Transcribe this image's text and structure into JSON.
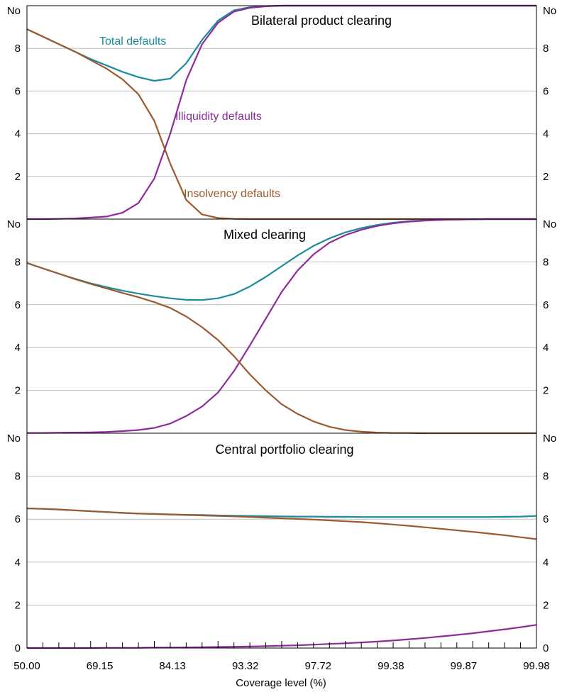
{
  "chart_data": {
    "type": "line",
    "xlabel": "Coverage level (%)",
    "x_tick_labels": [
      "50.00",
      "69.15",
      "84.13",
      "93.32",
      "97.72",
      "99.38",
      "99.87",
      "99.98"
    ],
    "y_unit_label": "No",
    "y_tick_labels": [
      "0",
      "2",
      "4",
      "6",
      "8"
    ],
    "ylim": [
      0,
      10
    ],
    "grid": "horizontal",
    "colors": {
      "total": "#1a8c9c",
      "illiquidity": "#8e2c9c",
      "insolvency": "#9c5a30",
      "grid": "#bfbfbf"
    },
    "x_points": 33,
    "panels": [
      {
        "title": "Bilateral product clearing",
        "labels": [
          {
            "series": "total",
            "text": "Total defaults"
          },
          {
            "series": "illiquidity",
            "text": "Illiquidity defaults"
          },
          {
            "series": "insolvency",
            "text": "Insolvency defaults"
          }
        ],
        "series": [
          {
            "key": "total",
            "values": [
              8.9,
              8.55,
              8.2,
              7.85,
              7.5,
              7.2,
              6.9,
              6.65,
              6.48,
              6.58,
              7.3,
              8.4,
              9.3,
              9.78,
              9.93,
              9.98,
              10,
              10,
              10,
              10,
              10,
              10,
              10,
              10,
              10,
              10,
              10,
              10,
              10,
              10,
              10,
              10,
              10
            ]
          },
          {
            "key": "illiquidity",
            "values": [
              0,
              0,
              0.01,
              0.03,
              0.07,
              0.12,
              0.3,
              0.75,
              1.9,
              4.0,
              6.5,
              8.2,
              9.2,
              9.72,
              9.9,
              9.97,
              10,
              10,
              10,
              10,
              10,
              10,
              10,
              10,
              10,
              10,
              10,
              10,
              10,
              10,
              10,
              10,
              10
            ]
          },
          {
            "key": "insolvency",
            "values": [
              8.9,
              8.55,
              8.2,
              7.85,
              7.45,
              7.05,
              6.55,
              5.85,
              4.6,
              2.6,
              0.9,
              0.22,
              0.05,
              0.01,
              0,
              0,
              0,
              0,
              0,
              0,
              0,
              0,
              0,
              0,
              0,
              0,
              0,
              0,
              0,
              0,
              0,
              0,
              0
            ]
          }
        ]
      },
      {
        "title": "Mixed clearing",
        "labels": [],
        "series": [
          {
            "key": "total",
            "values": [
              7.95,
              7.7,
              7.45,
              7.22,
              7.0,
              6.82,
              6.66,
              6.52,
              6.4,
              6.3,
              6.23,
              6.22,
              6.3,
              6.5,
              6.85,
              7.3,
              7.8,
              8.3,
              8.75,
              9.1,
              9.38,
              9.58,
              9.73,
              9.83,
              9.9,
              9.94,
              9.96,
              9.98,
              9.99,
              10,
              10,
              10,
              10
            ]
          },
          {
            "key": "illiquidity",
            "values": [
              0.01,
              0.01,
              0.02,
              0.03,
              0.04,
              0.06,
              0.1,
              0.15,
              0.25,
              0.45,
              0.8,
              1.25,
              1.9,
              2.9,
              4.1,
              5.35,
              6.6,
              7.6,
              8.35,
              8.9,
              9.25,
              9.5,
              9.68,
              9.8,
              9.88,
              9.93,
              9.96,
              9.98,
              9.99,
              10,
              10,
              10,
              10
            ]
          },
          {
            "key": "insolvency",
            "values": [
              7.95,
              7.7,
              7.45,
              7.2,
              6.97,
              6.76,
              6.55,
              6.35,
              6.12,
              5.85,
              5.45,
              4.95,
              4.35,
              3.6,
              2.75,
              2.0,
              1.35,
              0.9,
              0.55,
              0.3,
              0.15,
              0.07,
              0.03,
              0.01,
              0.01,
              0,
              0,
              0,
              0,
              0,
              0,
              0,
              0
            ]
          }
        ]
      },
      {
        "title": "Central portfolio clearing",
        "labels": [],
        "series": [
          {
            "key": "total",
            "values": [
              6.5,
              6.48,
              6.45,
              6.41,
              6.37,
              6.33,
              6.29,
              6.26,
              6.24,
              6.22,
              6.2,
              6.19,
              6.17,
              6.16,
              6.15,
              6.14,
              6.13,
              6.12,
              6.12,
              6.11,
              6.11,
              6.1,
              6.1,
              6.1,
              6.1,
              6.1,
              6.1,
              6.1,
              6.1,
              6.1,
              6.11,
              6.12,
              6.15
            ]
          },
          {
            "key": "insolvency",
            "values": [
              6.5,
              6.48,
              6.45,
              6.41,
              6.37,
              6.33,
              6.29,
              6.26,
              6.24,
              6.21,
              6.19,
              6.17,
              6.15,
              6.13,
              6.1,
              6.07,
              6.04,
              6.01,
              5.98,
              5.94,
              5.9,
              5.86,
              5.81,
              5.75,
              5.69,
              5.62,
              5.55,
              5.48,
              5.41,
              5.33,
              5.25,
              5.16,
              5.07
            ]
          },
          {
            "key": "illiquidity",
            "values": [
              0,
              0,
              0,
              0,
              0,
              0.01,
              0.01,
              0.01,
              0.02,
              0.02,
              0.03,
              0.04,
              0.05,
              0.06,
              0.07,
              0.09,
              0.11,
              0.13,
              0.16,
              0.19,
              0.22,
              0.26,
              0.3,
              0.35,
              0.41,
              0.47,
              0.54,
              0.61,
              0.69,
              0.78,
              0.87,
              0.97,
              1.08
            ]
          }
        ]
      }
    ]
  }
}
